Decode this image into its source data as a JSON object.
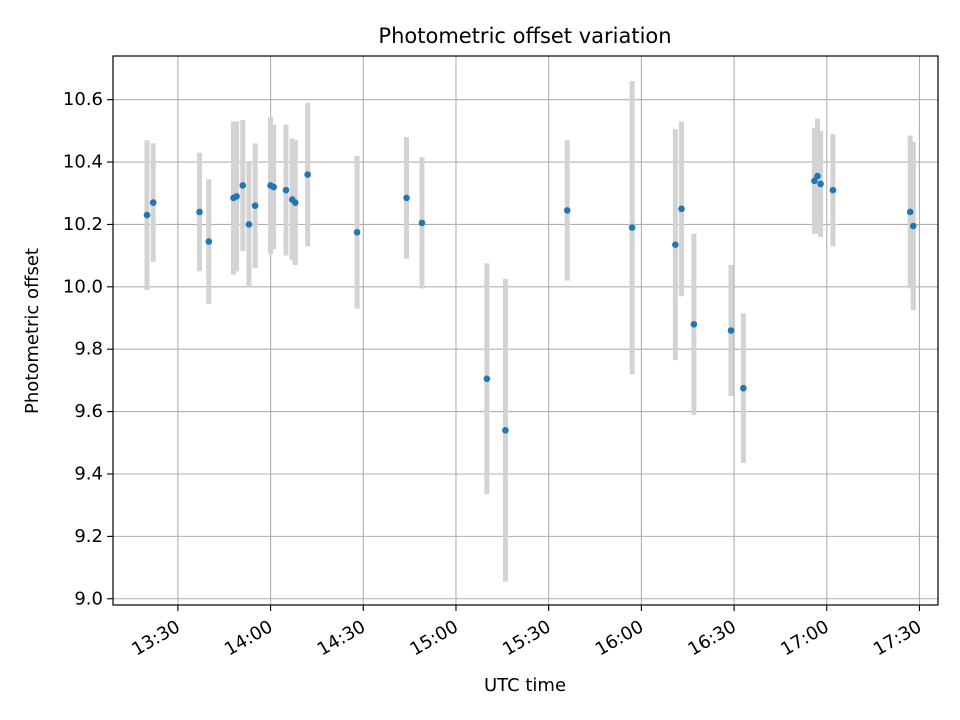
{
  "chart_data": {
    "type": "scatter",
    "title": "Photometric offset variation",
    "xlabel": "UTC time",
    "ylabel": "Photometric offset",
    "x_is_time": true,
    "xlim": [
      "13:09",
      "17:36"
    ],
    "ylim": [
      8.98,
      10.74
    ],
    "x_ticks": [
      "13:30",
      "14:00",
      "14:30",
      "15:00",
      "15:30",
      "16:00",
      "16:30",
      "17:00",
      "17:30"
    ],
    "y_ticks": [
      "9.0",
      "9.2",
      "9.4",
      "9.6",
      "9.8",
      "10.0",
      "10.2",
      "10.4",
      "10.6"
    ],
    "grid": true,
    "point_color": "#1f77b4",
    "errorbar_color": "#d3d3d3",
    "series": [
      {
        "points": [
          {
            "x": "13:20",
            "y": 10.23,
            "err": 0.24
          },
          {
            "x": "13:22",
            "y": 10.27,
            "err": 0.19
          },
          {
            "x": "13:37",
            "y": 10.24,
            "err": 0.19
          },
          {
            "x": "13:40",
            "y": 10.145,
            "err": 0.2
          },
          {
            "x": "13:48",
            "y": 10.285,
            "err": 0.245
          },
          {
            "x": "13:49",
            "y": 10.29,
            "err": 0.24
          },
          {
            "x": "13:51",
            "y": 10.325,
            "err": 0.21
          },
          {
            "x": "13:53",
            "y": 10.2,
            "err": 0.2
          },
          {
            "x": "13:55",
            "y": 10.26,
            "err": 0.2
          },
          {
            "x": "14:00",
            "y": 10.325,
            "err": 0.22
          },
          {
            "x": "14:01",
            "y": 10.32,
            "err": 0.2
          },
          {
            "x": "14:05",
            "y": 10.31,
            "err": 0.21
          },
          {
            "x": "14:07",
            "y": 10.28,
            "err": 0.195
          },
          {
            "x": "14:08",
            "y": 10.27,
            "err": 0.2
          },
          {
            "x": "14:12",
            "y": 10.36,
            "err": 0.23
          },
          {
            "x": "14:28",
            "y": 10.175,
            "err": 0.245
          },
          {
            "x": "14:44",
            "y": 10.285,
            "err": 0.195
          },
          {
            "x": "14:49",
            "y": 10.205,
            "err": 0.21
          },
          {
            "x": "15:10",
            "y": 9.705,
            "err": 0.37
          },
          {
            "x": "15:16",
            "y": 9.54,
            "err": 0.485
          },
          {
            "x": "15:36",
            "y": 10.245,
            "err": 0.225
          },
          {
            "x": "15:57",
            "y": 10.19,
            "err": 0.47
          },
          {
            "x": "16:11",
            "y": 10.135,
            "err": 0.37
          },
          {
            "x": "16:13",
            "y": 10.25,
            "err": 0.28
          },
          {
            "x": "16:17",
            "y": 9.88,
            "err": 0.29
          },
          {
            "x": "16:29",
            "y": 9.86,
            "err": 0.21
          },
          {
            "x": "16:33",
            "y": 9.675,
            "err": 0.24
          },
          {
            "x": "16:56",
            "y": 10.34,
            "err": 0.17
          },
          {
            "x": "16:57",
            "y": 10.355,
            "err": 0.185
          },
          {
            "x": "16:58",
            "y": 10.33,
            "err": 0.17
          },
          {
            "x": "17:02",
            "y": 10.31,
            "err": 0.18
          },
          {
            "x": "17:27",
            "y": 10.24,
            "err": 0.245
          },
          {
            "x": "17:28",
            "y": 10.195,
            "err": 0.27
          }
        ]
      }
    ]
  }
}
